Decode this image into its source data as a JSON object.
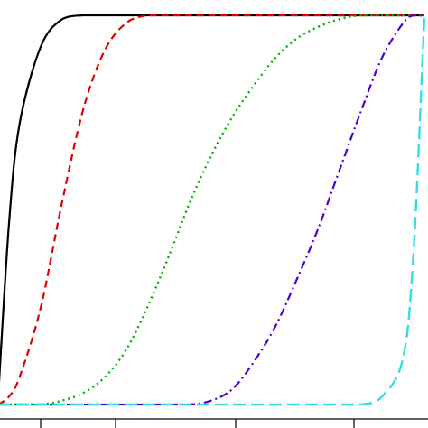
{
  "chart_data": {
    "type": "line",
    "title": "",
    "xlabel": "",
    "ylabel": "",
    "xlim": [
      0,
      1
    ],
    "ylim": [
      0,
      1
    ],
    "grid": false,
    "x": [
      0,
      0.025,
      0.05,
      0.1,
      0.15,
      0.2,
      0.25,
      0.3,
      0.35,
      0.4,
      0.45,
      0.5,
      0.55,
      0.6,
      0.65,
      0.7,
      0.75,
      0.8,
      0.85,
      0.9,
      0.95,
      0.975,
      1.0
    ],
    "series": [
      {
        "color": "#000000",
        "dash": "solid",
        "values": [
          0.02,
          0.46,
          0.72,
          0.92,
          0.99,
          1.0,
          1.0,
          1.0,
          1.0,
          1.0,
          1.0,
          1.0,
          1.0,
          1.0,
          1.0,
          1.0,
          1.0,
          1.0,
          1.0,
          1.0,
          1.0,
          1.0,
          1.0
        ]
      },
      {
        "color": "#e00000",
        "dash": "dashed",
        "values": [
          0.0,
          0.02,
          0.07,
          0.25,
          0.52,
          0.76,
          0.91,
          0.98,
          1.0,
          1.0,
          1.0,
          1.0,
          1.0,
          1.0,
          1.0,
          1.0,
          1.0,
          1.0,
          1.0,
          1.0,
          1.0,
          1.0,
          1.0
        ]
      },
      {
        "color": "#00b000",
        "dash": "dotted",
        "values": [
          0.0,
          0.0,
          0.0,
          0.0,
          0.01,
          0.03,
          0.07,
          0.14,
          0.25,
          0.38,
          0.52,
          0.64,
          0.74,
          0.82,
          0.89,
          0.94,
          0.97,
          0.99,
          1.0,
          1.0,
          1.0,
          1.0,
          1.0
        ]
      },
      {
        "color": "#5000d0",
        "dash": "dashdot",
        "values": [
          0.0,
          0.0,
          0.0,
          0.0,
          0.0,
          0.0,
          0.0,
          0.0,
          0.0,
          0.0,
          0.0,
          0.01,
          0.04,
          0.11,
          0.2,
          0.32,
          0.45,
          0.6,
          0.75,
          0.89,
          0.98,
          1.0,
          1.0
        ]
      },
      {
        "color": "#33dde8",
        "dash": "longdash",
        "values": [
          0.0,
          0.0,
          0.0,
          0.0,
          0.0,
          0.0,
          0.0,
          0.0,
          0.0,
          0.0,
          0.0,
          0.0,
          0.0,
          0.0,
          0.0,
          0.0,
          0.0,
          0.0,
          0.0,
          0.02,
          0.12,
          0.4,
          1.0
        ]
      }
    ],
    "x_ticks": [
      0,
      0.25,
      0.5,
      0.75
    ],
    "y_ticks": [
      0,
      0.25,
      0.5,
      0.75,
      1.0
    ]
  }
}
